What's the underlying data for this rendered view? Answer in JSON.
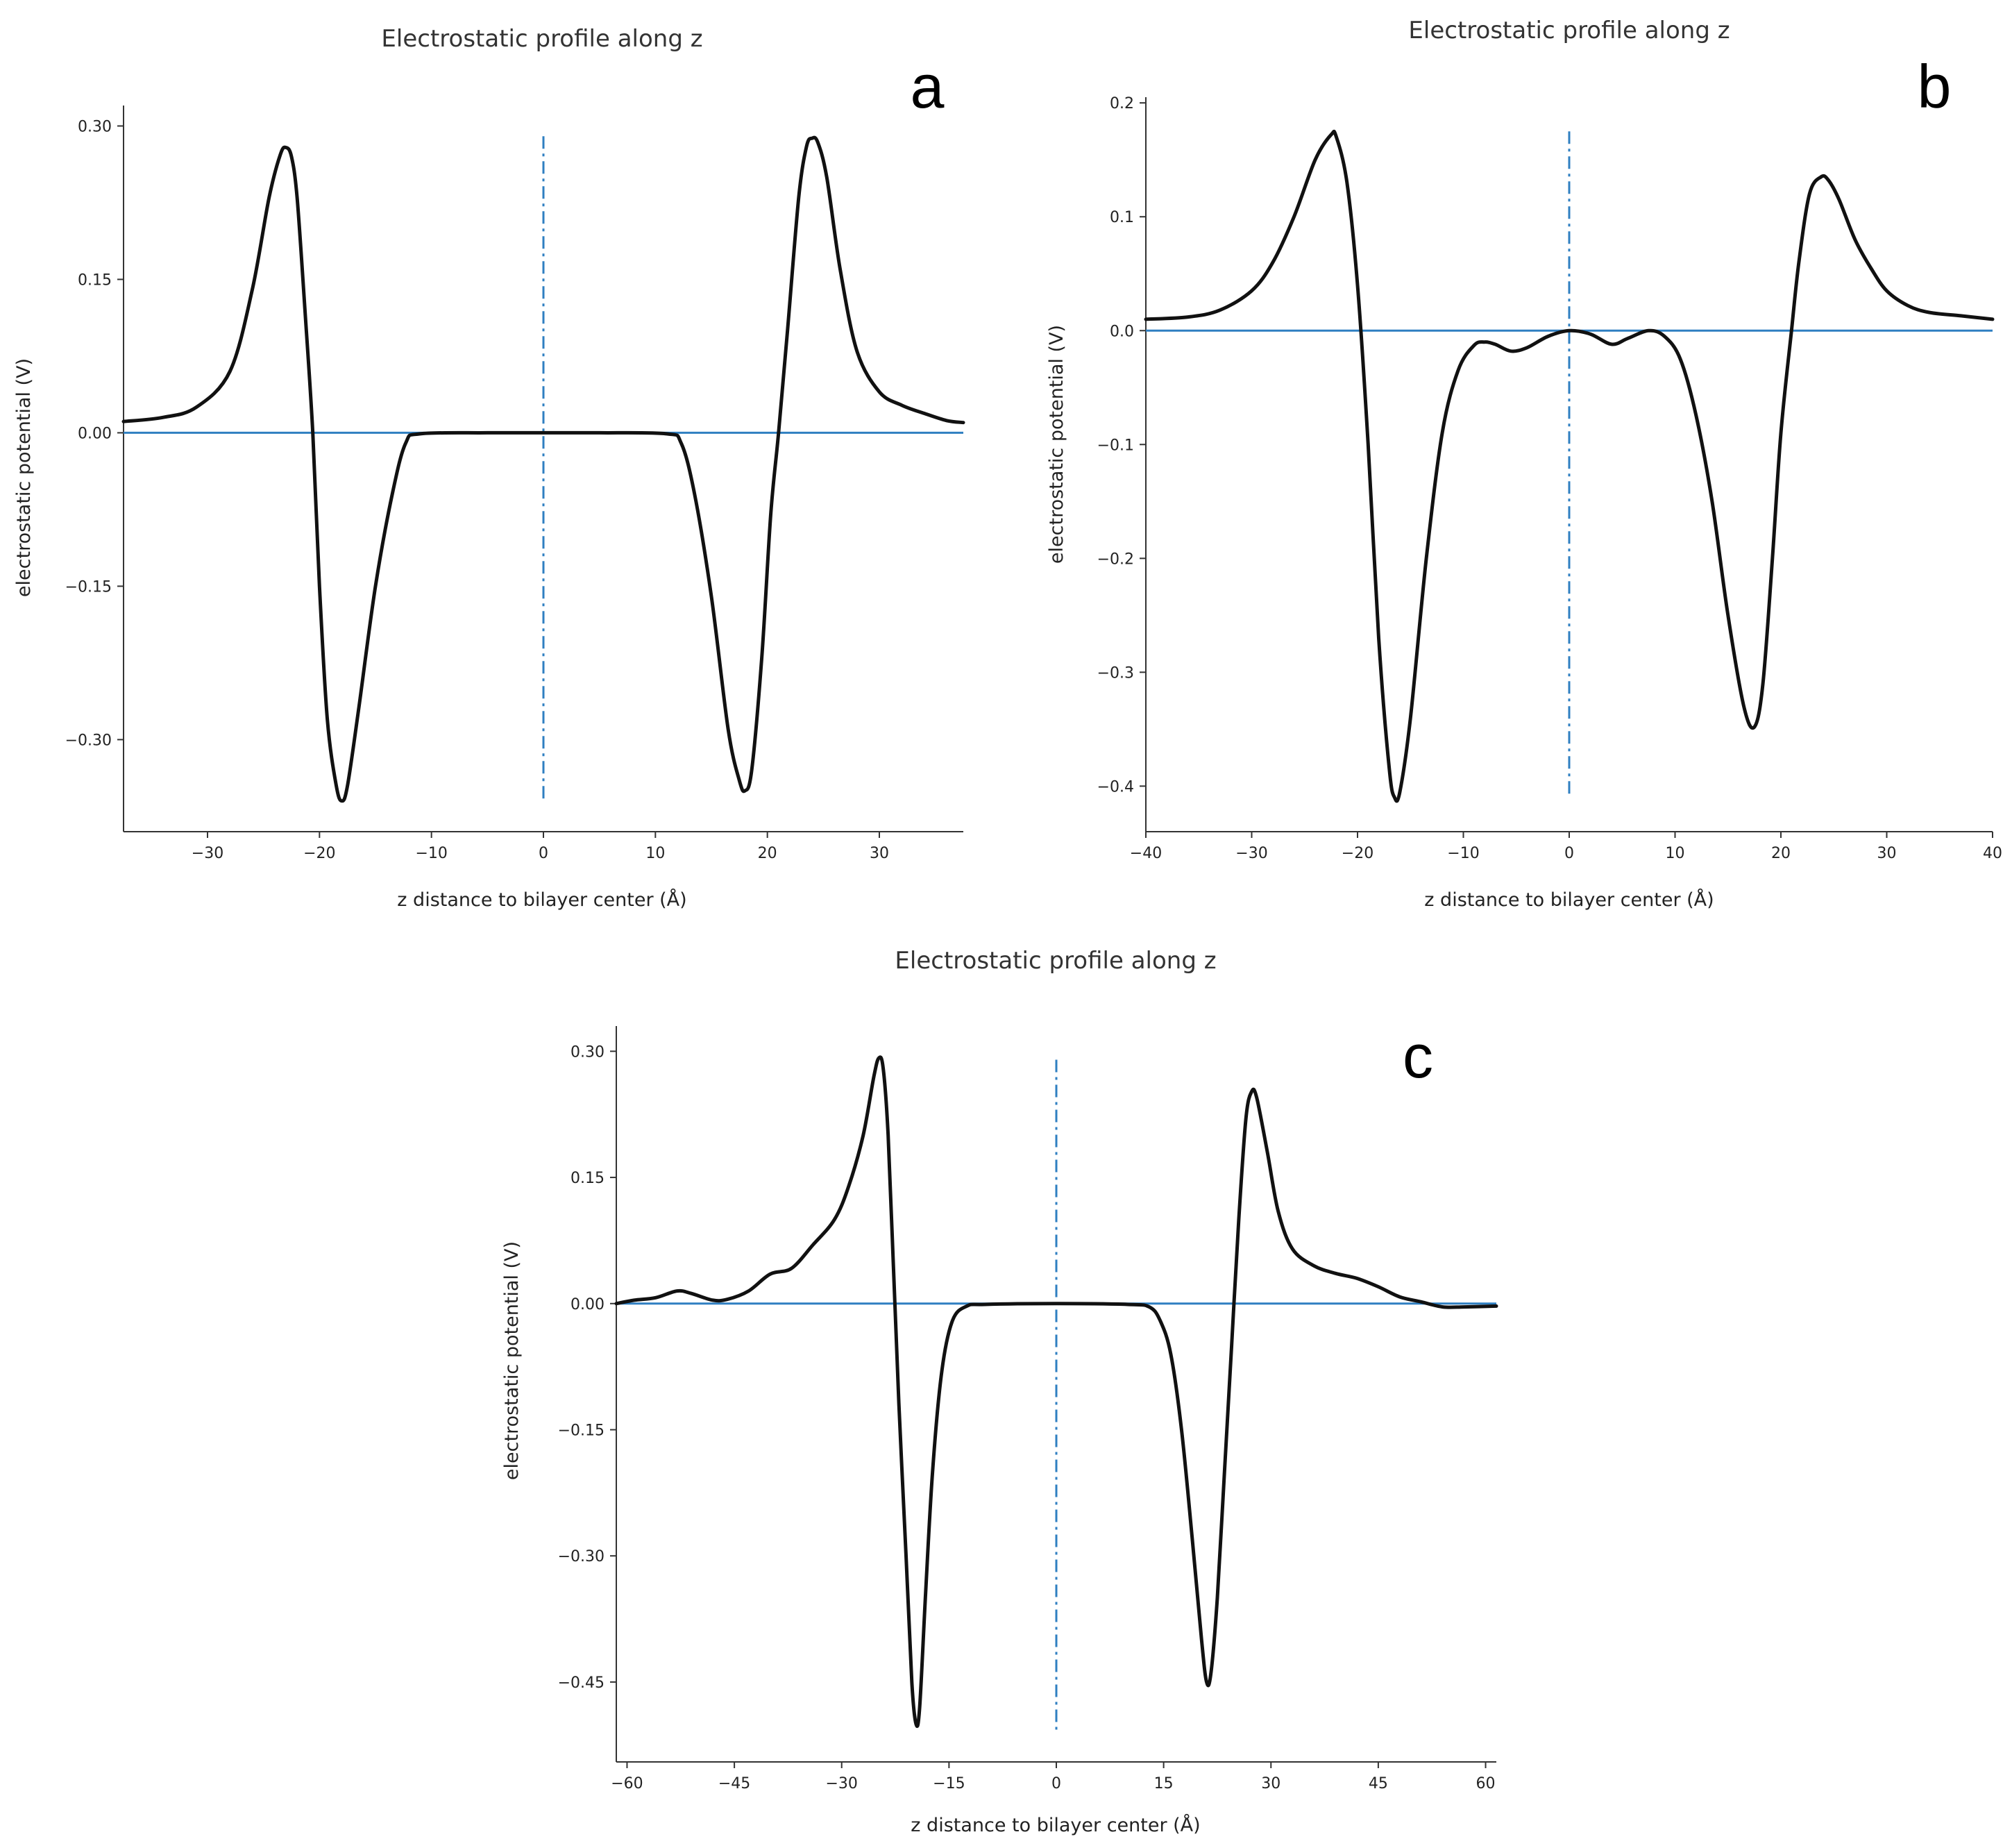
{
  "chart_data": [
    {
      "id": "a",
      "type": "line",
      "panel_label": "a",
      "title": "Electrostatic profile along z",
      "xlabel": "z distance to bilayer center (Å)",
      "ylabel": "electrostatic potential (V)",
      "xlim": [
        -37.5,
        37.5
      ],
      "ylim": [
        -0.39,
        0.32
      ],
      "xticks": [
        -30,
        -20,
        -10,
        0,
        10,
        20,
        30
      ],
      "xtick_labels": [
        "−30",
        "−20",
        "−10",
        "0",
        "10",
        "20",
        "30"
      ],
      "yticks": [
        0.3,
        0.15,
        0.0,
        -0.15,
        -0.3
      ],
      "ytick_labels": [
        "0.30",
        "0.15",
        "0.00",
        "−0.15",
        "−0.30"
      ],
      "reference_lines": {
        "horizontal_y": 0.0,
        "vertical_x": 0.0,
        "vertical_style": "dash-dot",
        "vertical_range": [
          -0.36,
          0.29
        ]
      },
      "series": [
        {
          "name": "potential",
          "color": "#111111",
          "points": [
            [
              -37.5,
              0.011
            ],
            [
              -34,
              0.015
            ],
            [
              -31,
              0.025
            ],
            [
              -28,
              0.06
            ],
            [
              -26,
              0.14
            ],
            [
              -24.5,
              0.23
            ],
            [
              -23.5,
              0.272
            ],
            [
              -23,
              0.279
            ],
            [
              -22.5,
              0.27
            ],
            [
              -22,
              0.23
            ],
            [
              -21.3,
              0.12
            ],
            [
              -20.6,
              0.0
            ],
            [
              -20,
              -0.15
            ],
            [
              -19.3,
              -0.28
            ],
            [
              -18.5,
              -0.345
            ],
            [
              -18,
              -0.36
            ],
            [
              -17.5,
              -0.345
            ],
            [
              -16.5,
              -0.27
            ],
            [
              -15,
              -0.15
            ],
            [
              -13.5,
              -0.06
            ],
            [
              -12.3,
              -0.01
            ],
            [
              -11,
              -0.001
            ],
            [
              -5,
              0.0
            ],
            [
              0,
              0.0
            ],
            [
              5,
              0.0
            ],
            [
              11,
              -0.001
            ],
            [
              12.3,
              -0.01
            ],
            [
              13.5,
              -0.06
            ],
            [
              15,
              -0.16
            ],
            [
              16.5,
              -0.29
            ],
            [
              17.5,
              -0.34
            ],
            [
              18,
              -0.35
            ],
            [
              18.6,
              -0.33
            ],
            [
              19.5,
              -0.22
            ],
            [
              20.3,
              -0.08
            ],
            [
              21,
              0.0
            ],
            [
              21.8,
              0.1
            ],
            [
              22.8,
              0.23
            ],
            [
              23.5,
              0.28
            ],
            [
              24,
              0.288
            ],
            [
              24.5,
              0.284
            ],
            [
              25.3,
              0.25
            ],
            [
              26.5,
              0.16
            ],
            [
              28,
              0.08
            ],
            [
              30,
              0.04
            ],
            [
              32,
              0.027
            ],
            [
              34,
              0.019
            ],
            [
              36,
              0.012
            ],
            [
              37.5,
              0.01
            ]
          ]
        }
      ]
    },
    {
      "id": "b",
      "type": "line",
      "panel_label": "b",
      "title": "Electrostatic profile along z",
      "xlabel": "z distance to bilayer center (Å)",
      "ylabel": "electrostatic potential (V)",
      "xlim": [
        -40,
        40
      ],
      "ylim": [
        -0.44,
        0.205
      ],
      "xticks": [
        -40,
        -30,
        -20,
        -10,
        0,
        10,
        20,
        30,
        40
      ],
      "xtick_labels": [
        "−40",
        "−30",
        "−20",
        "−10",
        "0",
        "10",
        "20",
        "30",
        "40"
      ],
      "yticks": [
        0.2,
        0.1,
        0.0,
        -0.1,
        -0.2,
        -0.3,
        -0.4
      ],
      "ytick_labels": [
        "0.2",
        "0.1",
        "0.0",
        "−0.1",
        "−0.2",
        "−0.3",
        "−0.4"
      ],
      "reference_lines": {
        "horizontal_y": 0.0,
        "vertical_x": 0.0,
        "vertical_style": "dash-dot",
        "vertical_range": [
          -0.41,
          0.175
        ]
      },
      "series": [
        {
          "name": "potential",
          "color": "#111111",
          "points": [
            [
              -40,
              0.01
            ],
            [
              -36,
              0.012
            ],
            [
              -33,
              0.018
            ],
            [
              -30,
              0.035
            ],
            [
              -28,
              0.06
            ],
            [
              -26,
              0.1
            ],
            [
              -24,
              0.15
            ],
            [
              -22.5,
              0.172
            ],
            [
              -22,
              0.17
            ],
            [
              -21,
              0.13
            ],
            [
              -20,
              0.04
            ],
            [
              -19,
              -0.1
            ],
            [
              -18,
              -0.27
            ],
            [
              -17,
              -0.385
            ],
            [
              -16.5,
              -0.41
            ],
            [
              -16,
              -0.405
            ],
            [
              -15,
              -0.34
            ],
            [
              -13.5,
              -0.2
            ],
            [
              -12,
              -0.09
            ],
            [
              -10.5,
              -0.035
            ],
            [
              -9,
              -0.013
            ],
            [
              -8,
              -0.01
            ],
            [
              -7,
              -0.012
            ],
            [
              -5.5,
              -0.018
            ],
            [
              -4,
              -0.015
            ],
            [
              -2,
              -0.005
            ],
            [
              0,
              0.0
            ],
            [
              2,
              -0.003
            ],
            [
              4,
              -0.012
            ],
            [
              5.5,
              -0.007
            ],
            [
              7.5,
              0.0
            ],
            [
              9,
              -0.005
            ],
            [
              10.5,
              -0.025
            ],
            [
              12,
              -0.075
            ],
            [
              13.5,
              -0.15
            ],
            [
              15,
              -0.25
            ],
            [
              16.5,
              -0.33
            ],
            [
              17.5,
              -0.348
            ],
            [
              18.3,
              -0.31
            ],
            [
              19.2,
              -0.2
            ],
            [
              20,
              -0.09
            ],
            [
              21,
              0.0
            ],
            [
              21.7,
              0.06
            ],
            [
              22.7,
              0.12
            ],
            [
              23.8,
              0.135
            ],
            [
              24.5,
              0.132
            ],
            [
              25.5,
              0.115
            ],
            [
              27,
              0.08
            ],
            [
              28.5,
              0.055
            ],
            [
              30,
              0.035
            ],
            [
              32,
              0.022
            ],
            [
              34,
              0.016
            ],
            [
              37,
              0.013
            ],
            [
              40,
              0.01
            ]
          ]
        }
      ]
    },
    {
      "id": "c",
      "type": "line",
      "panel_label": "c",
      "title": "Electrostatic profile along z",
      "xlabel": "z distance to bilayer center (Å)",
      "ylabel": "electrostatic potential (V)",
      "xlim": [
        -61.5,
        61.5
      ],
      "ylim": [
        -0.545,
        0.33
      ],
      "xticks": [
        -60,
        -45,
        -30,
        -15,
        0,
        15,
        30,
        45,
        60
      ],
      "xtick_labels": [
        "−60",
        "−45",
        "−30",
        "−15",
        "0",
        "15",
        "30",
        "45",
        "60"
      ],
      "yticks": [
        0.3,
        0.15,
        0.0,
        -0.15,
        -0.3,
        -0.45
      ],
      "ytick_labels": [
        "0.30",
        "0.15",
        "0.00",
        "−0.15",
        "−0.30",
        "−0.45"
      ],
      "reference_lines": {
        "horizontal_y": 0.0,
        "vertical_x": 0.0,
        "vertical_style": "dash-dot",
        "vertical_range": [
          -0.51,
          0.29
        ]
      },
      "series": [
        {
          "name": "potential",
          "color": "#111111",
          "points": [
            [
              -61.5,
              0.0
            ],
            [
              -59,
              0.004
            ],
            [
              -56,
              0.007
            ],
            [
              -53,
              0.015
            ],
            [
              -51,
              0.012
            ],
            [
              -48,
              0.004
            ],
            [
              -46,
              0.005
            ],
            [
              -43,
              0.015
            ],
            [
              -40,
              0.035
            ],
            [
              -37,
              0.042
            ],
            [
              -34,
              0.07
            ],
            [
              -31,
              0.1
            ],
            [
              -29,
              0.14
            ],
            [
              -27,
              0.2
            ],
            [
              -25.5,
              0.27
            ],
            [
              -24.8,
              0.292
            ],
            [
              -24.2,
              0.28
            ],
            [
              -23.5,
              0.2
            ],
            [
              -22.8,
              0.05
            ],
            [
              -22,
              -0.12
            ],
            [
              -21,
              -0.3
            ],
            [
              -20.2,
              -0.45
            ],
            [
              -19.6,
              -0.5
            ],
            [
              -19.1,
              -0.48
            ],
            [
              -18.3,
              -0.35
            ],
            [
              -17.3,
              -0.2
            ],
            [
              -16,
              -0.08
            ],
            [
              -14.5,
              -0.02
            ],
            [
              -12.5,
              -0.003
            ],
            [
              -10,
              -0.001
            ],
            [
              0,
              0.0
            ],
            [
              10,
              -0.001
            ],
            [
              13,
              -0.004
            ],
            [
              14.5,
              -0.02
            ],
            [
              16,
              -0.06
            ],
            [
              17.5,
              -0.15
            ],
            [
              19,
              -0.28
            ],
            [
              20.3,
              -0.4
            ],
            [
              21,
              -0.45
            ],
            [
              21.6,
              -0.44
            ],
            [
              22.5,
              -0.35
            ],
            [
              23.5,
              -0.2
            ],
            [
              24.5,
              -0.05
            ],
            [
              25.5,
              0.1
            ],
            [
              26.5,
              0.22
            ],
            [
              27.3,
              0.252
            ],
            [
              28,
              0.245
            ],
            [
              29.5,
              0.18
            ],
            [
              31,
              0.11
            ],
            [
              33,
              0.065
            ],
            [
              36,
              0.045
            ],
            [
              39,
              0.036
            ],
            [
              42,
              0.03
            ],
            [
              45,
              0.02
            ],
            [
              48,
              0.008
            ],
            [
              51,
              0.002
            ],
            [
              54,
              -0.004
            ],
            [
              57,
              -0.004
            ],
            [
              61.5,
              -0.003
            ]
          ]
        }
      ]
    }
  ]
}
